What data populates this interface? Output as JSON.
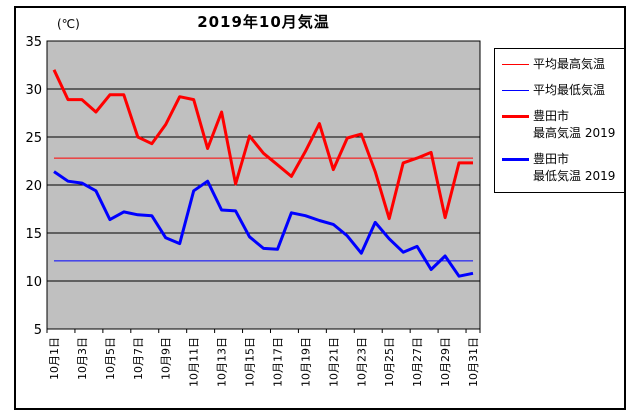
{
  "chart": {
    "title": "2019年10月気温",
    "unit_label": "(℃)"
  },
  "legend": {
    "items": [
      {
        "line1": "平均最高気温",
        "line2": "",
        "color": "#FF0000",
        "style": "thin"
      },
      {
        "line1": "平均最低気温",
        "line2": "",
        "color": "#0000FF",
        "style": "thin"
      },
      {
        "line1": "豊田市",
        "line2": "最高気温 2019",
        "color": "#FF0000",
        "style": "thick"
      },
      {
        "line1": "豊田市",
        "line2": "最低気温 2019",
        "color": "#0000FF",
        "style": "thick"
      }
    ]
  },
  "chart_data": {
    "type": "line",
    "title": "2019年10月気温",
    "unit": "℃",
    "days": 31,
    "ylim": [
      5,
      35
    ],
    "yticks": [
      35,
      30,
      25,
      20,
      15,
      10,
      5
    ],
    "grid": true,
    "plot_bg": "#C0C0C0",
    "x_tick_labels": [
      "10月1日",
      "10月3日",
      "10月5日",
      "10月7日",
      "10月9日",
      "10月11日",
      "10月13日",
      "10月15日",
      "10月17日",
      "10月19日",
      "10月21日",
      "10月23日",
      "10月25日",
      "10月27日",
      "10月29日",
      "10月31日"
    ],
    "series": [
      {
        "name": "平均最高気温",
        "type": "constant",
        "value": 22.8,
        "color": "#FF0000",
        "width": 1
      },
      {
        "name": "平均最低気温",
        "type": "constant",
        "value": 12.1,
        "color": "#0000FF",
        "width": 1
      },
      {
        "name": "豊田市 最高気温 2019",
        "type": "line",
        "color": "#FF0000",
        "width": 3,
        "values": [
          32.0,
          28.9,
          28.9,
          27.6,
          29.4,
          29.4,
          25.0,
          24.3,
          26.3,
          29.2,
          28.9,
          23.8,
          27.6,
          20.1,
          25.1,
          23.3,
          22.1,
          20.9,
          23.5,
          26.4,
          21.6,
          24.9,
          25.3,
          21.4,
          16.5,
          22.3,
          22.8,
          23.4,
          16.6,
          22.3,
          22.3
        ]
      },
      {
        "name": "豊田市 最低気温 2019",
        "type": "line",
        "color": "#0000FF",
        "width": 3,
        "values": [
          21.4,
          20.4,
          20.2,
          19.4,
          16.4,
          17.2,
          16.9,
          16.8,
          14.5,
          13.9,
          19.4,
          20.4,
          17.4,
          17.3,
          14.6,
          13.4,
          13.3,
          17.1,
          16.8,
          16.3,
          15.9,
          14.7,
          12.9,
          16.1,
          14.4,
          13.0,
          13.6,
          11.2,
          12.6,
          10.5,
          10.8
        ]
      }
    ]
  }
}
